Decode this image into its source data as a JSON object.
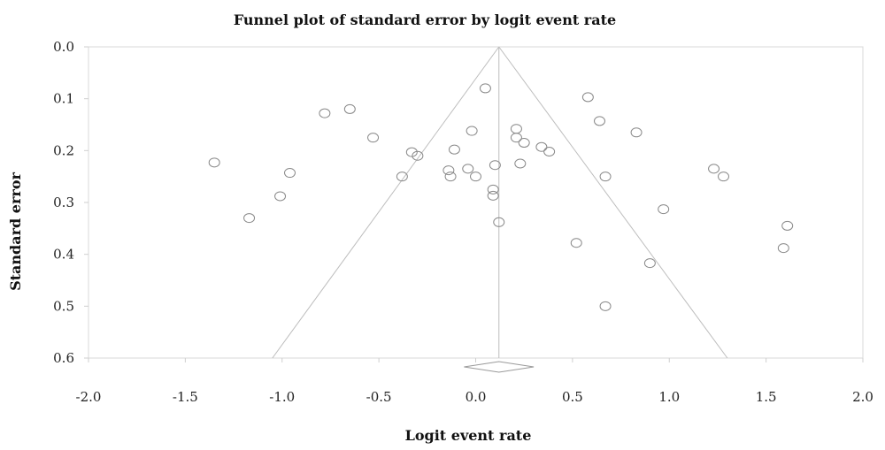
{
  "chart_data": {
    "type": "scatter",
    "title": "Funnel plot of standard error by logit event rate",
    "xlabel": "Logit event rate",
    "ylabel": "Standard error",
    "xlim": [
      -2.0,
      2.0
    ],
    "ylim": [
      0.0,
      0.6
    ],
    "y_inverted": true,
    "xticks": [
      "-2.0",
      "-1.5",
      "-1.0",
      "-0.5",
      "0.0",
      "0.5",
      "1.0",
      "1.5",
      "2.0"
    ],
    "xtick_values": [
      -2.0,
      -1.5,
      -1.0,
      -0.5,
      0.0,
      0.5,
      1.0,
      1.5,
      2.0
    ],
    "yticks": [
      "0.0",
      "0.1",
      "0.2",
      "0.3",
      "0.4",
      "0.5",
      "0.6"
    ],
    "ytick_values": [
      0.0,
      0.1,
      0.2,
      0.3,
      0.4,
      0.5,
      0.6
    ],
    "pooled_estimate": 0.12,
    "funnel_limits_at_bottom": [
      -1.05,
      1.3
    ],
    "diamond": {
      "center": 0.12,
      "lower": -0.06,
      "upper": 0.3
    },
    "points": [
      {
        "x": 0.05,
        "y": 0.08
      },
      {
        "x": 0.58,
        "y": 0.097
      },
      {
        "x": -0.65,
        "y": 0.12
      },
      {
        "x": -0.78,
        "y": 0.128
      },
      {
        "x": 0.64,
        "y": 0.143
      },
      {
        "x": 0.21,
        "y": 0.158
      },
      {
        "x": -0.02,
        "y": 0.162
      },
      {
        "x": 0.83,
        "y": 0.165
      },
      {
        "x": 0.21,
        "y": 0.175
      },
      {
        "x": -0.53,
        "y": 0.175
      },
      {
        "x": 0.25,
        "y": 0.185
      },
      {
        "x": 0.34,
        "y": 0.193
      },
      {
        "x": -0.11,
        "y": 0.198
      },
      {
        "x": 0.38,
        "y": 0.202
      },
      {
        "x": -0.33,
        "y": 0.203
      },
      {
        "x": -0.3,
        "y": 0.21
      },
      {
        "x": -1.35,
        "y": 0.223
      },
      {
        "x": 0.23,
        "y": 0.225
      },
      {
        "x": 0.1,
        "y": 0.228
      },
      {
        "x": -0.04,
        "y": 0.235
      },
      {
        "x": 1.23,
        "y": 0.235
      },
      {
        "x": -0.14,
        "y": 0.238
      },
      {
        "x": -0.96,
        "y": 0.243
      },
      {
        "x": -0.38,
        "y": 0.25
      },
      {
        "x": -0.13,
        "y": 0.25
      },
      {
        "x": 0.0,
        "y": 0.25
      },
      {
        "x": 0.67,
        "y": 0.25
      },
      {
        "x": 1.28,
        "y": 0.25
      },
      {
        "x": 0.09,
        "y": 0.275
      },
      {
        "x": 0.09,
        "y": 0.287
      },
      {
        "x": -1.01,
        "y": 0.288
      },
      {
        "x": 0.97,
        "y": 0.313
      },
      {
        "x": -1.17,
        "y": 0.33
      },
      {
        "x": 0.12,
        "y": 0.338
      },
      {
        "x": 1.61,
        "y": 0.345
      },
      {
        "x": 0.52,
        "y": 0.378
      },
      {
        "x": 1.59,
        "y": 0.388
      },
      {
        "x": 0.9,
        "y": 0.417
      },
      {
        "x": 0.67,
        "y": 0.5
      }
    ]
  }
}
